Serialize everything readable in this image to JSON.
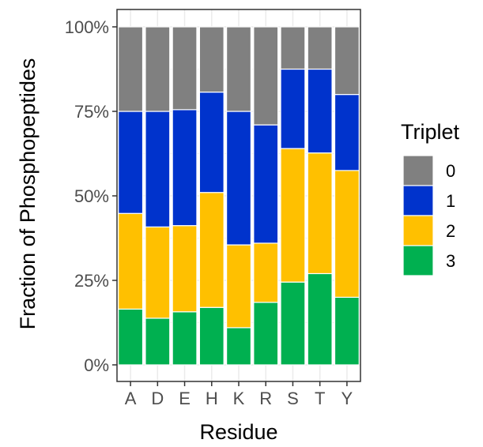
{
  "chart_data": {
    "type": "bar",
    "stacked": true,
    "normalized": true,
    "categories": [
      "A",
      "D",
      "E",
      "H",
      "K",
      "R",
      "S",
      "T",
      "Y"
    ],
    "xlabel": "Residue",
    "ylabel": "Fraction of Phosphopeptides",
    "ylim": [
      0,
      1
    ],
    "yticks": [
      {
        "value": 0,
        "label": "0%"
      },
      {
        "value": 0.25,
        "label": "25%"
      },
      {
        "value": 0.5,
        "label": "50%"
      },
      {
        "value": 0.75,
        "label": "75%"
      },
      {
        "value": 1,
        "label": "100%"
      }
    ],
    "grid": true,
    "legend": {
      "title": "Triplet",
      "placement": "right"
    },
    "series": [
      {
        "name": "3",
        "color": "#00b050",
        "values": [
          0.165,
          0.138,
          0.157,
          0.17,
          0.11,
          0.185,
          0.245,
          0.27,
          0.2
        ]
      },
      {
        "name": "2",
        "color": "#ffc000",
        "values": [
          0.283,
          0.27,
          0.255,
          0.34,
          0.245,
          0.175,
          0.395,
          0.357,
          0.375
        ]
      },
      {
        "name": "1",
        "color": "#0033cc",
        "values": [
          0.302,
          0.342,
          0.343,
          0.297,
          0.395,
          0.35,
          0.235,
          0.248,
          0.225
        ]
      },
      {
        "name": "0",
        "color": "#808080",
        "values": [
          0.25,
          0.25,
          0.245,
          0.193,
          0.25,
          0.29,
          0.125,
          0.125,
          0.2
        ]
      }
    ],
    "legend_order": [
      "0",
      "1",
      "2",
      "3"
    ]
  }
}
